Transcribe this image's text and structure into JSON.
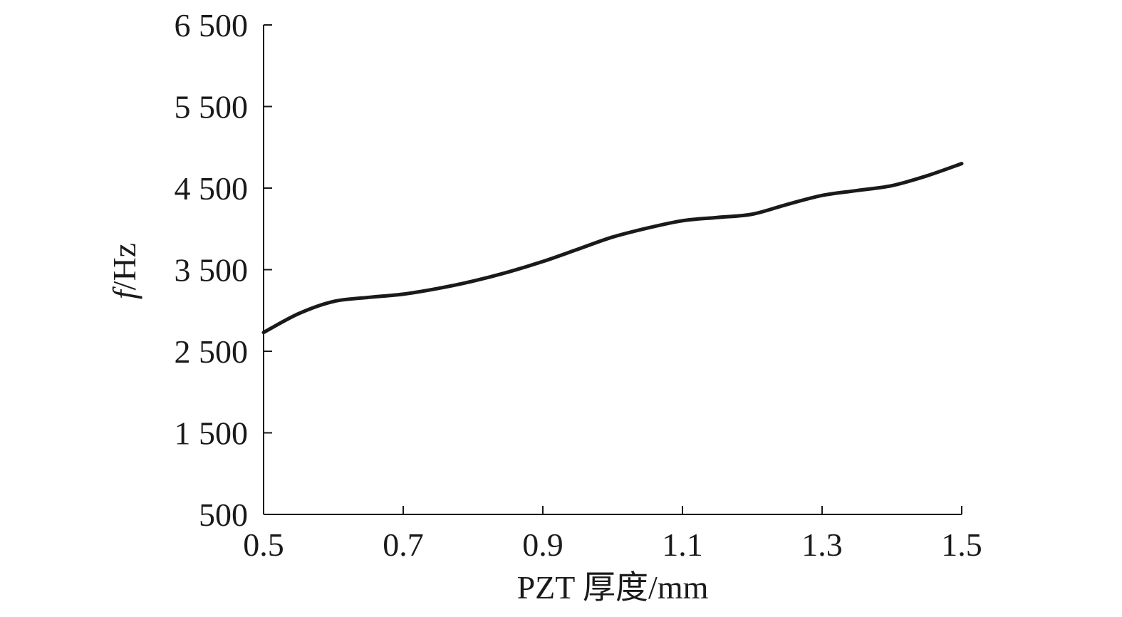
{
  "chart_data": {
    "type": "line",
    "title": "",
    "xlabel": "PZT 厚度/mm",
    "ylabel_italic": "f",
    "ylabel_rest": "/Hz",
    "xlim": [
      0.5,
      1.5
    ],
    "ylim": [
      500,
      6500
    ],
    "xticks": [
      {
        "value": 0.5,
        "label": "0.5"
      },
      {
        "value": 0.7,
        "label": "0.7"
      },
      {
        "value": 0.9,
        "label": "0.9"
      },
      {
        "value": 1.1,
        "label": "1.1"
      },
      {
        "value": 1.3,
        "label": "1.3"
      },
      {
        "value": 1.5,
        "label": "1.5"
      }
    ],
    "yticks": [
      {
        "value": 500,
        "label": "500"
      },
      {
        "value": 1500,
        "label": "1 500"
      },
      {
        "value": 2500,
        "label": "2 500"
      },
      {
        "value": 3500,
        "label": "3 500"
      },
      {
        "value": 4500,
        "label": "4 500"
      },
      {
        "value": 5500,
        "label": "5 500"
      },
      {
        "value": 6500,
        "label": "6 500"
      }
    ],
    "series": [
      {
        "name": "f",
        "color": "#1a1a1a",
        "x": [
          0.5,
          0.55,
          0.6,
          0.65,
          0.7,
          0.75,
          0.8,
          0.85,
          0.9,
          0.95,
          1.0,
          1.05,
          1.1,
          1.15,
          1.2,
          1.25,
          1.3,
          1.35,
          1.4,
          1.45,
          1.5
        ],
        "y": [
          2730,
          2960,
          3110,
          3160,
          3200,
          3270,
          3360,
          3470,
          3600,
          3750,
          3900,
          4010,
          4100,
          4140,
          4180,
          4300,
          4410,
          4470,
          4530,
          4650,
          4800
        ]
      }
    ]
  }
}
